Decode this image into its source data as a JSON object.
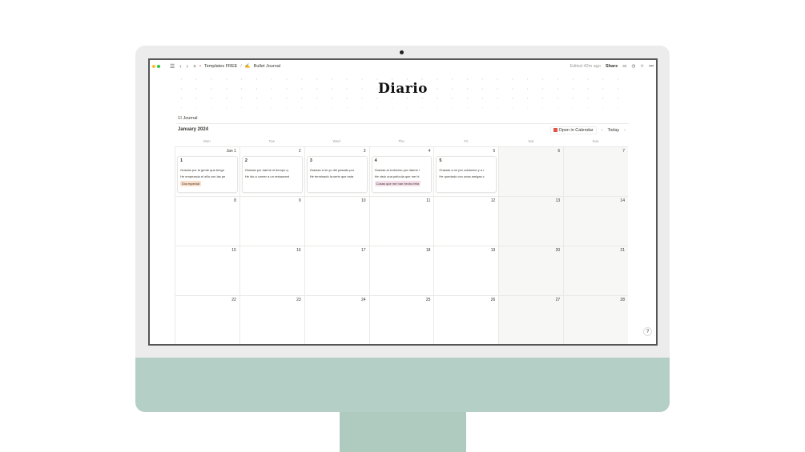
{
  "topbar": {
    "breadcrumb_1": "Templates FREE",
    "separator": "/",
    "breadcrumb_2": "Bullet Journal",
    "edited": "Edited 42m ago",
    "share": "Share"
  },
  "page": {
    "title": "Diario",
    "tab": "Journal",
    "month": "January 2024",
    "open_calendar": "Open in Calendar",
    "today": "Today",
    "help": "?"
  },
  "weekdays": [
    "Mon",
    "Tue",
    "Wed",
    "Thu",
    "Fri",
    "Sat",
    "Sun"
  ],
  "weeks": [
    [
      "Jan 1",
      "2",
      "3",
      "4",
      "5",
      "6",
      "7"
    ],
    [
      "8",
      "9",
      "10",
      "11",
      "12",
      "13",
      "14"
    ],
    [
      "15",
      "16",
      "17",
      "18",
      "19",
      "20",
      "21"
    ],
    [
      "22",
      "23",
      "24",
      "25",
      "26",
      "27",
      "28"
    ]
  ],
  "entries": [
    {
      "title": "1",
      "lines": [
        "Gracias por la gente que tengo",
        "He empezado el año con las pe"
      ],
      "tag": "Día especial",
      "tag_color": "#fadec9"
    },
    {
      "title": "2",
      "lines": [
        "Gracias por darme el tiempo q",
        "He ido a comer a un restaurant"
      ]
    },
    {
      "title": "3",
      "lines": [
        "Gracias a mi yo del pasado por",
        "He terminado la serie que esta"
      ]
    },
    {
      "title": "4",
      "lines": [
        "Gracias al Universo por darme l",
        "He visto una película que me hi"
      ],
      "tag": "Cosas que me han hecho feliz",
      "tag_color": "#f5e0e9"
    },
    {
      "title": "5",
      "lines": [
        "Gracias a mí por cuidarme y a r",
        "He quedado con unas amigas c"
      ]
    }
  ],
  "colors": {
    "monitor_green": "#b4cfc5",
    "bezel": "#ececec"
  }
}
